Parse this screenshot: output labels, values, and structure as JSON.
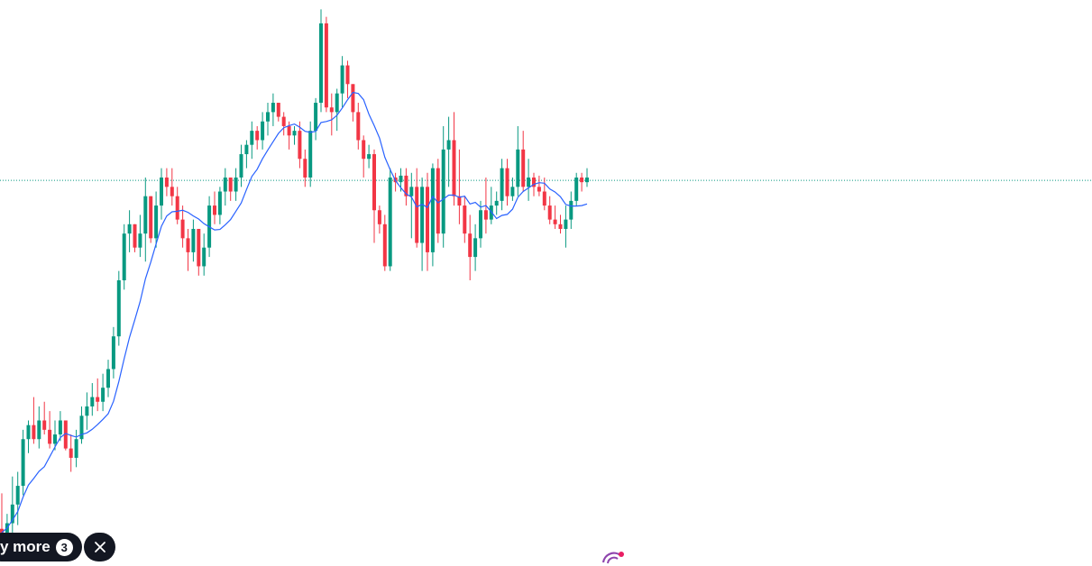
{
  "chart_data": {
    "type": "candlestick",
    "ylim": [
      0,
      600
    ],
    "price_line": 407,
    "grid": false,
    "colors": {
      "up": "#089981",
      "down": "#f23645",
      "ma": "#2962ff",
      "price_line": "#089981"
    },
    "series": [
      {
        "name": "",
        "values": [
          {
            "o": 34,
            "h": 72,
            "l": 22,
            "c": 30
          },
          {
            "o": 30,
            "h": 50,
            "l": 18,
            "c": 40
          },
          {
            "o": 40,
            "h": 90,
            "l": 30,
            "c": 60
          },
          {
            "o": 60,
            "h": 95,
            "l": 38,
            "c": 80
          },
          {
            "o": 80,
            "h": 140,
            "l": 70,
            "c": 130
          },
          {
            "o": 130,
            "h": 150,
            "l": 115,
            "c": 145
          },
          {
            "o": 145,
            "h": 175,
            "l": 125,
            "c": 130
          },
          {
            "o": 130,
            "h": 165,
            "l": 120,
            "c": 150
          },
          {
            "o": 150,
            "h": 170,
            "l": 135,
            "c": 140
          },
          {
            "o": 140,
            "h": 160,
            "l": 120,
            "c": 125
          },
          {
            "o": 125,
            "h": 150,
            "l": 118,
            "c": 135
          },
          {
            "o": 135,
            "h": 160,
            "l": 128,
            "c": 150
          },
          {
            "o": 150,
            "h": 148,
            "l": 118,
            "c": 120
          },
          {
            "o": 120,
            "h": 135,
            "l": 95,
            "c": 110
          },
          {
            "o": 110,
            "h": 140,
            "l": 100,
            "c": 130
          },
          {
            "o": 130,
            "h": 165,
            "l": 125,
            "c": 155
          },
          {
            "o": 155,
            "h": 180,
            "l": 140,
            "c": 165
          },
          {
            "o": 165,
            "h": 190,
            "l": 155,
            "c": 175
          },
          {
            "o": 175,
            "h": 195,
            "l": 160,
            "c": 170
          },
          {
            "o": 170,
            "h": 200,
            "l": 160,
            "c": 185
          },
          {
            "o": 185,
            "h": 215,
            "l": 175,
            "c": 205
          },
          {
            "o": 205,
            "h": 250,
            "l": 195,
            "c": 240
          },
          {
            "o": 240,
            "h": 310,
            "l": 230,
            "c": 300
          },
          {
            "o": 300,
            "h": 360,
            "l": 290,
            "c": 350
          },
          {
            "o": 350,
            "h": 375,
            "l": 330,
            "c": 360
          },
          {
            "o": 360,
            "h": 360,
            "l": 330,
            "c": 335
          },
          {
            "o": 335,
            "h": 370,
            "l": 325,
            "c": 350
          },
          {
            "o": 350,
            "h": 410,
            "l": 320,
            "c": 390
          },
          {
            "o": 390,
            "h": 390,
            "l": 340,
            "c": 345
          },
          {
            "o": 345,
            "h": 395,
            "l": 335,
            "c": 380
          },
          {
            "o": 380,
            "h": 420,
            "l": 365,
            "c": 410
          },
          {
            "o": 410,
            "h": 420,
            "l": 390,
            "c": 400
          },
          {
            "o": 400,
            "h": 420,
            "l": 380,
            "c": 390
          },
          {
            "o": 390,
            "h": 400,
            "l": 360,
            "c": 365
          },
          {
            "o": 365,
            "h": 380,
            "l": 335,
            "c": 345
          },
          {
            "o": 345,
            "h": 355,
            "l": 310,
            "c": 330
          },
          {
            "o": 330,
            "h": 365,
            "l": 320,
            "c": 355
          },
          {
            "o": 355,
            "h": 355,
            "l": 305,
            "c": 315
          },
          {
            "o": 315,
            "h": 350,
            "l": 305,
            "c": 335
          },
          {
            "o": 335,
            "h": 390,
            "l": 325,
            "c": 380
          },
          {
            "o": 380,
            "h": 395,
            "l": 360,
            "c": 370
          },
          {
            "o": 370,
            "h": 400,
            "l": 360,
            "c": 395
          },
          {
            "o": 395,
            "h": 420,
            "l": 380,
            "c": 410
          },
          {
            "o": 410,
            "h": 410,
            "l": 385,
            "c": 395
          },
          {
            "o": 395,
            "h": 420,
            "l": 385,
            "c": 410
          },
          {
            "o": 410,
            "h": 445,
            "l": 400,
            "c": 435
          },
          {
            "o": 435,
            "h": 450,
            "l": 420,
            "c": 445
          },
          {
            "o": 445,
            "h": 470,
            "l": 430,
            "c": 460
          },
          {
            "o": 460,
            "h": 465,
            "l": 440,
            "c": 450
          },
          {
            "o": 450,
            "h": 480,
            "l": 440,
            "c": 470
          },
          {
            "o": 470,
            "h": 490,
            "l": 455,
            "c": 480
          },
          {
            "o": 480,
            "h": 500,
            "l": 465,
            "c": 490
          },
          {
            "o": 490,
            "h": 490,
            "l": 470,
            "c": 475
          },
          {
            "o": 475,
            "h": 480,
            "l": 455,
            "c": 465
          },
          {
            "o": 465,
            "h": 470,
            "l": 440,
            "c": 455
          },
          {
            "o": 455,
            "h": 465,
            "l": 445,
            "c": 460
          },
          {
            "o": 460,
            "h": 470,
            "l": 420,
            "c": 430
          },
          {
            "o": 430,
            "h": 440,
            "l": 400,
            "c": 410
          },
          {
            "o": 410,
            "h": 470,
            "l": 400,
            "c": 460
          },
          {
            "o": 460,
            "h": 495,
            "l": 450,
            "c": 490
          },
          {
            "o": 490,
            "h": 590,
            "l": 480,
            "c": 575
          },
          {
            "o": 575,
            "h": 582,
            "l": 480,
            "c": 485
          },
          {
            "o": 485,
            "h": 500,
            "l": 455,
            "c": 480
          },
          {
            "o": 480,
            "h": 505,
            "l": 460,
            "c": 500
          },
          {
            "o": 500,
            "h": 540,
            "l": 485,
            "c": 530
          },
          {
            "o": 530,
            "h": 535,
            "l": 495,
            "c": 510
          },
          {
            "o": 510,
            "h": 510,
            "l": 470,
            "c": 480
          },
          {
            "o": 480,
            "h": 490,
            "l": 440,
            "c": 450
          },
          {
            "o": 450,
            "h": 455,
            "l": 410,
            "c": 430
          },
          {
            "o": 430,
            "h": 445,
            "l": 420,
            "c": 435
          },
          {
            "o": 435,
            "h": 440,
            "l": 340,
            "c": 375
          },
          {
            "o": 375,
            "h": 380,
            "l": 350,
            "c": 360
          },
          {
            "o": 360,
            "h": 370,
            "l": 310,
            "c": 315
          },
          {
            "o": 315,
            "h": 420,
            "l": 310,
            "c": 410
          },
          {
            "o": 410,
            "h": 415,
            "l": 395,
            "c": 405
          },
          {
            "o": 405,
            "h": 420,
            "l": 395,
            "c": 412
          },
          {
            "o": 412,
            "h": 420,
            "l": 380,
            "c": 390
          },
          {
            "o": 390,
            "h": 415,
            "l": 345,
            "c": 400
          },
          {
            "o": 400,
            "h": 420,
            "l": 335,
            "c": 340
          },
          {
            "o": 340,
            "h": 410,
            "l": 310,
            "c": 400
          },
          {
            "o": 400,
            "h": 415,
            "l": 310,
            "c": 330
          },
          {
            "o": 330,
            "h": 425,
            "l": 315,
            "c": 420
          },
          {
            "o": 420,
            "h": 430,
            "l": 340,
            "c": 350
          },
          {
            "o": 350,
            "h": 465,
            "l": 335,
            "c": 440
          },
          {
            "o": 440,
            "h": 475,
            "l": 400,
            "c": 450
          },
          {
            "o": 450,
            "h": 480,
            "l": 380,
            "c": 390
          },
          {
            "o": 390,
            "h": 440,
            "l": 360,
            "c": 380
          },
          {
            "o": 380,
            "h": 390,
            "l": 340,
            "c": 350
          },
          {
            "o": 350,
            "h": 370,
            "l": 300,
            "c": 325
          },
          {
            "o": 325,
            "h": 360,
            "l": 310,
            "c": 345
          },
          {
            "o": 345,
            "h": 385,
            "l": 335,
            "c": 375
          },
          {
            "o": 375,
            "h": 410,
            "l": 350,
            "c": 365
          },
          {
            "o": 365,
            "h": 400,
            "l": 360,
            "c": 380
          },
          {
            "o": 380,
            "h": 395,
            "l": 370,
            "c": 385
          },
          {
            "o": 385,
            "h": 430,
            "l": 375,
            "c": 420
          },
          {
            "o": 420,
            "h": 430,
            "l": 380,
            "c": 390
          },
          {
            "o": 390,
            "h": 410,
            "l": 385,
            "c": 400
          },
          {
            "o": 400,
            "h": 465,
            "l": 390,
            "c": 440
          },
          {
            "o": 440,
            "h": 460,
            "l": 395,
            "c": 400
          },
          {
            "o": 400,
            "h": 430,
            "l": 385,
            "c": 410
          },
          {
            "o": 410,
            "h": 415,
            "l": 390,
            "c": 400
          },
          {
            "o": 400,
            "h": 412,
            "l": 390,
            "c": 395
          },
          {
            "o": 395,
            "h": 410,
            "l": 375,
            "c": 380
          },
          {
            "o": 380,
            "h": 390,
            "l": 360,
            "c": 365
          },
          {
            "o": 365,
            "h": 380,
            "l": 355,
            "c": 360
          },
          {
            "o": 360,
            "h": 370,
            "l": 350,
            "c": 355
          },
          {
            "o": 355,
            "h": 380,
            "l": 335,
            "c": 365
          },
          {
            "o": 365,
            "h": 395,
            "l": 355,
            "c": 385
          },
          {
            "o": 385,
            "h": 415,
            "l": 380,
            "c": 410
          },
          {
            "o": 410,
            "h": 415,
            "l": 395,
            "c": 405
          },
          {
            "o": 405,
            "h": 420,
            "l": 400,
            "c": 410
          }
        ]
      }
    ],
    "ma_period": 9
  },
  "ui": {
    "more_label": "y more",
    "more_count": "3",
    "close_icon": "close-icon",
    "logo_icon": "brand-logo-icon"
  }
}
